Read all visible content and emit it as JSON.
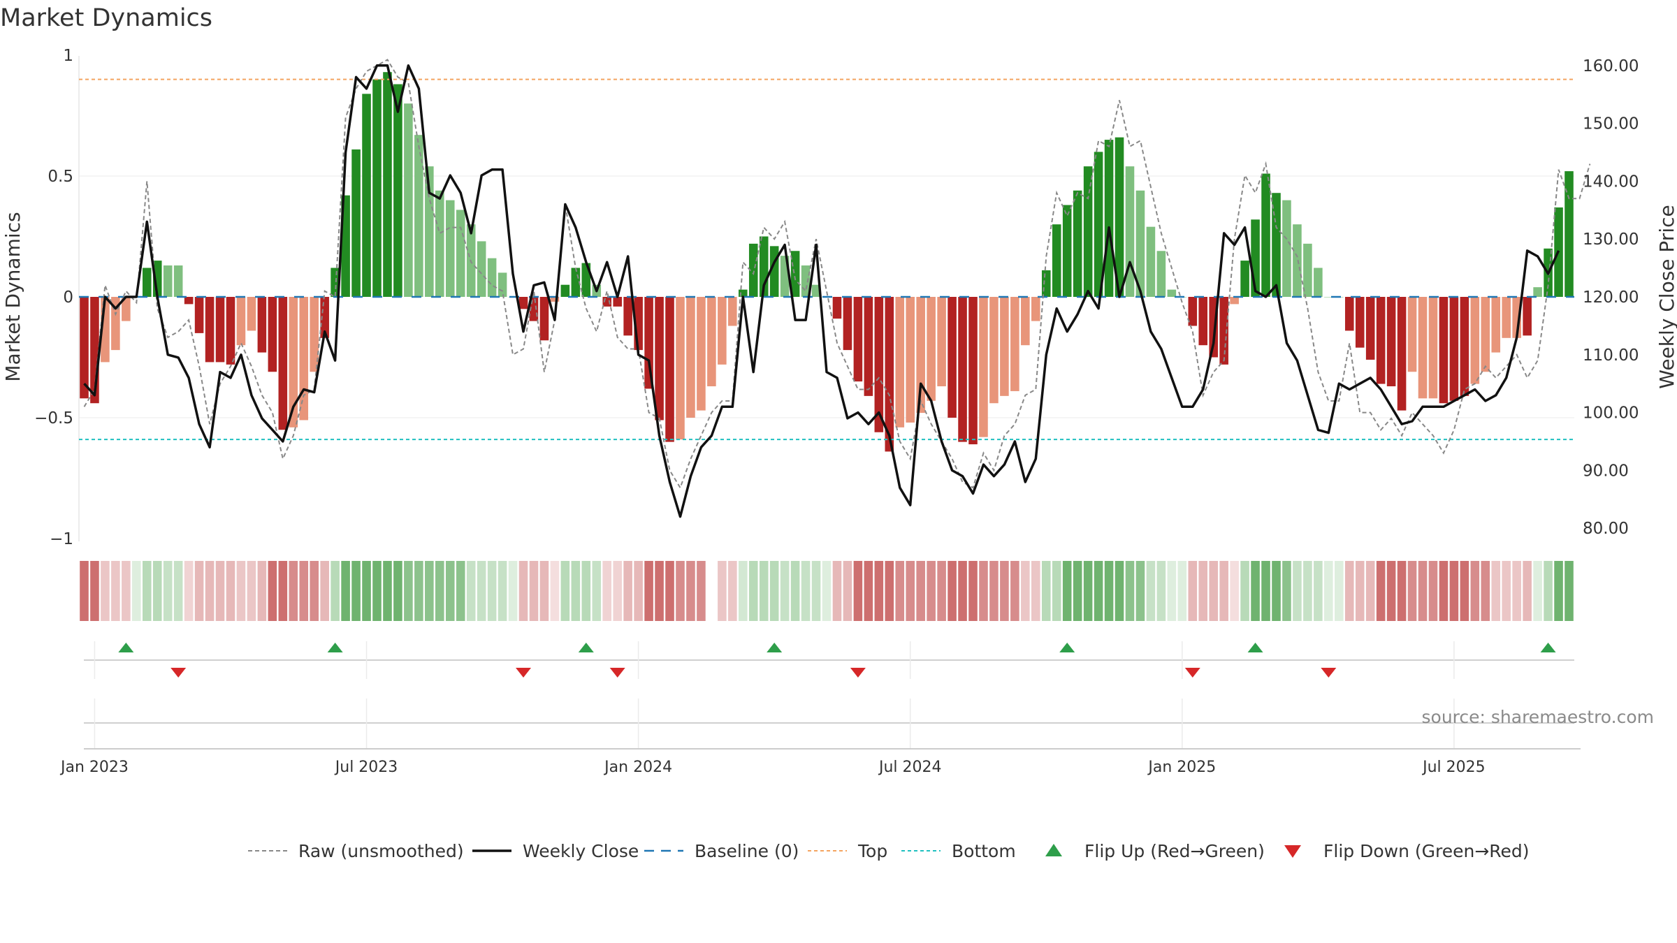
{
  "title": "Market Dynamics",
  "source": "source: sharemaestro.com",
  "colors": {
    "strong_red": "#b22222",
    "light_red": "#e8957a",
    "strong_green": "#228b22",
    "light_green": "#7fbf7f",
    "close_line": "#111111",
    "raw_line": "#888888",
    "baseline": "#1f77b4",
    "top": "#f4a460",
    "bottom": "#20c0c0",
    "flip_up": "#2e9e4a",
    "flip_down": "#d62728"
  },
  "chart_data": {
    "type": "bar",
    "xlabel": "",
    "ylabel": "Market Dynamics",
    "y2label": "Weekly Close Price",
    "ylim": [
      -1,
      1
    ],
    "y2lim": [
      78,
      162
    ],
    "yticks": [
      {
        "v": 1,
        "label": "1"
      },
      {
        "v": 0.5,
        "label": "0.5"
      },
      {
        "v": 0,
        "label": "0"
      },
      {
        "v": -0.5,
        "label": "−0.5"
      },
      {
        "v": -1,
        "label": "−1"
      }
    ],
    "y2ticks": [
      "160.00",
      "150.00",
      "140.00",
      "130.00",
      "120.00",
      "110.00",
      "100.00",
      "90.00",
      "80.00"
    ],
    "x_ticks": [
      {
        "week": 1,
        "label": "Jan 2023"
      },
      {
        "week": 27,
        "label": "Jul 2023"
      },
      {
        "week": 53,
        "label": "Jan 2024"
      },
      {
        "week": 79,
        "label": "Jul 2024"
      },
      {
        "week": 105,
        "label": "Jan 2025"
      },
      {
        "week": 131,
        "label": "Jul 2025"
      }
    ],
    "top_threshold": 0.9,
    "bottom_threshold": -0.59,
    "bar_values": [
      -0.42,
      -0.44,
      -0.27,
      -0.22,
      -0.1,
      0.0,
      0.12,
      0.15,
      0.13,
      0.13,
      -0.03,
      -0.15,
      -0.27,
      -0.27,
      -0.28,
      -0.2,
      -0.14,
      -0.23,
      -0.31,
      -0.55,
      -0.54,
      -0.51,
      -0.31,
      -0.17,
      0.12,
      0.42,
      0.61,
      0.84,
      0.9,
      0.93,
      0.88,
      0.8,
      0.67,
      0.54,
      0.44,
      0.4,
      0.36,
      0.3,
      0.23,
      0.16,
      0.1,
      0.0,
      -0.05,
      -0.1,
      -0.18,
      -0.02,
      0.05,
      0.12,
      0.14,
      0.05,
      -0.04,
      -0.04,
      -0.16,
      -0.22,
      -0.38,
      -0.51,
      -0.6,
      -0.59,
      -0.5,
      -0.47,
      -0.37,
      -0.28,
      -0.12,
      0.03,
      0.22,
      0.25,
      0.21,
      0.17,
      0.19,
      0.13,
      0.05,
      0.0,
      -0.09,
      -0.22,
      -0.35,
      -0.41,
      -0.56,
      -0.64,
      -0.54,
      -0.52,
      -0.48,
      -0.43,
      -0.37,
      -0.5,
      -0.6,
      -0.61,
      -0.58,
      -0.44,
      -0.41,
      -0.39,
      -0.2,
      -0.1,
      0.11,
      0.3,
      0.38,
      0.44,
      0.54,
      0.6,
      0.65,
      0.66,
      0.54,
      0.44,
      0.29,
      0.19,
      0.03,
      0.0,
      -0.12,
      -0.2,
      -0.25,
      -0.28,
      -0.03,
      0.15,
      0.32,
      0.51,
      0.43,
      0.4,
      0.3,
      0.22,
      0.12,
      0.0,
      0.0,
      -0.14,
      -0.21,
      -0.26,
      -0.36,
      -0.37,
      -0.47,
      -0.31,
      -0.42,
      -0.42,
      -0.44,
      -0.43,
      -0.41,
      -0.36,
      -0.31,
      -0.23,
      -0.17,
      -0.17,
      -0.16,
      0.04,
      0.2,
      0.37,
      0.52
    ],
    "bar_strength": [
      1,
      1,
      0,
      0,
      0,
      0,
      1,
      1,
      0,
      0,
      1,
      1,
      1,
      1,
      1,
      0,
      0,
      1,
      1,
      1,
      0,
      0,
      0,
      1,
      1,
      1,
      1,
      1,
      1,
      1,
      1,
      0,
      0,
      0,
      0,
      0,
      0,
      0,
      0,
      0,
      0,
      0,
      1,
      1,
      1,
      0,
      1,
      1,
      1,
      0,
      1,
      1,
      1,
      1,
      1,
      1,
      1,
      0,
      0,
      0,
      0,
      0,
      0,
      1,
      1,
      1,
      1,
      0,
      1,
      0,
      0,
      0,
      1,
      1,
      1,
      1,
      1,
      1,
      0,
      0,
      0,
      0,
      0,
      1,
      1,
      1,
      0,
      0,
      0,
      0,
      0,
      0,
      1,
      1,
      1,
      1,
      1,
      1,
      1,
      1,
      0,
      0,
      0,
      0,
      0,
      0,
      1,
      1,
      1,
      1,
      0,
      1,
      1,
      1,
      1,
      0,
      0,
      0,
      0,
      0,
      0,
      1,
      1,
      1,
      1,
      1,
      1,
      0,
      0,
      0,
      1,
      1,
      1,
      0,
      0,
      0,
      0,
      0,
      1,
      0,
      1,
      1,
      1
    ],
    "close": [
      105,
      103,
      120,
      118,
      120,
      120,
      133,
      120,
      110,
      109.5,
      106,
      98,
      94,
      107,
      106,
      110,
      103,
      99,
      97,
      95,
      101,
      104,
      103.5,
      114,
      109,
      145,
      158,
      156,
      160,
      160,
      152,
      160,
      156,
      138,
      137,
      141,
      138,
      131,
      141,
      142,
      142,
      124,
      114,
      122,
      122.5,
      116,
      136,
      132,
      126,
      121,
      126,
      120,
      127,
      110,
      109,
      96,
      88,
      82,
      89,
      94,
      96,
      101,
      101,
      120,
      107,
      122,
      126,
      129,
      116,
      116,
      129,
      107,
      106,
      99,
      100,
      98,
      100,
      96,
      87,
      84,
      105,
      102,
      95,
      90,
      89,
      86,
      91,
      89,
      91,
      95,
      88,
      92,
      110,
      118,
      114,
      117,
      121,
      118,
      132,
      120,
      126,
      121,
      114,
      111,
      106,
      101,
      101,
      104,
      112,
      131,
      129,
      132,
      121,
      120,
      122,
      112,
      109,
      103,
      97,
      96.5,
      105,
      104,
      105,
      106,
      104,
      101,
      98,
      98.5,
      101,
      101,
      101,
      102,
      103,
      104,
      102,
      103,
      106,
      113,
      128,
      127,
      124,
      128
    ],
    "raw": [
      101,
      104,
      122,
      117,
      121,
      119,
      140,
      118,
      113,
      114,
      116,
      108,
      98,
      105,
      108,
      112,
      108,
      103,
      100,
      92,
      96,
      103,
      104,
      121,
      120,
      151,
      156,
      159,
      160,
      161,
      158,
      157,
      146,
      137,
      131,
      132,
      132,
      126,
      124,
      122,
      121,
      110,
      111,
      121,
      107,
      116,
      136,
      125,
      118,
      114,
      121,
      113,
      111,
      111,
      100,
      99,
      90,
      87,
      92,
      96,
      100,
      102,
      102,
      126,
      124,
      132,
      130,
      133,
      123,
      121,
      130,
      121,
      112,
      108,
      104,
      104,
      106,
      103,
      95,
      92,
      102,
      98,
      95,
      92,
      88,
      87,
      93,
      90,
      96,
      98,
      103,
      104,
      127,
      138,
      134,
      138,
      137,
      147,
      146,
      154,
      146,
      147,
      139,
      131,
      125,
      119,
      114,
      103,
      107,
      109,
      130,
      141,
      138,
      143,
      132,
      130,
      127,
      118,
      107,
      102,
      102,
      112,
      100,
      100,
      97,
      99,
      96,
      100,
      98,
      96,
      93,
      97,
      104,
      105,
      108,
      106,
      108,
      110,
      106,
      109,
      122,
      142,
      137,
      137,
      143
    ],
    "flip_up_weeks": [
      4,
      24,
      48,
      66,
      94,
      112,
      140
    ],
    "flip_down_weeks": [
      9,
      42,
      51,
      74,
      106,
      119
    ],
    "ribbon_gap_after_week": 60
  },
  "legend": [
    {
      "key": "raw",
      "label": "Raw (unsmoothed)"
    },
    {
      "key": "close",
      "label": "Weekly Close"
    },
    {
      "key": "baseline",
      "label": "Baseline (0)"
    },
    {
      "key": "top",
      "label": "Top"
    },
    {
      "key": "bottom",
      "label": "Bottom"
    },
    {
      "key": "flip_up",
      "label": "Flip Up (Red→Green)"
    },
    {
      "key": "flip_down",
      "label": "Flip Down (Green→Red)"
    }
  ]
}
